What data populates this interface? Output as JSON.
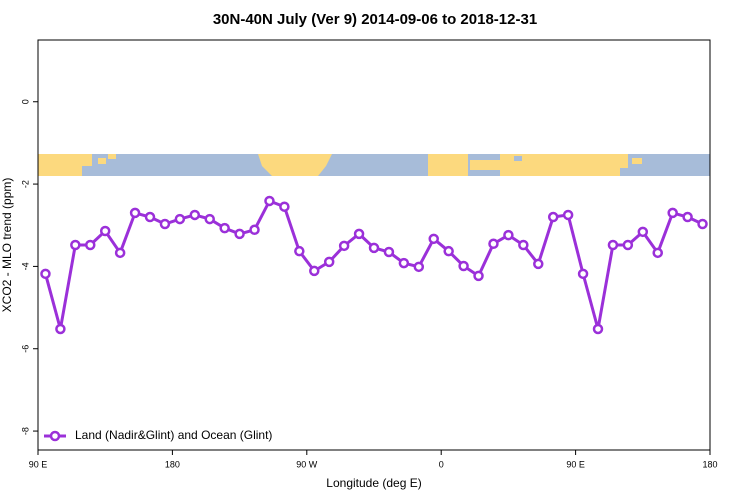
{
  "chart_data": {
    "type": "line",
    "title": "30N-40N July (Ver 9)   2014-09-06 to 2018-12-31",
    "x_label": "Longitude (deg E)",
    "y_label": "XCO2 - MLO trend (ppm)",
    "x": [
      95,
      105,
      115,
      125,
      135,
      145,
      155,
      165,
      175,
      185,
      195,
      205,
      215,
      225,
      235,
      245,
      255,
      265,
      275,
      285,
      295,
      305,
      315,
      325,
      335,
      345,
      355,
      365,
      375,
      385,
      395,
      405,
      415,
      425,
      435,
      445,
      455,
      465,
      475,
      485,
      495,
      505,
      515,
      525,
      535
    ],
    "series": [
      {
        "name": "Land (Nadir&Glint) and Ocean (Glint)",
        "color": "#9b30d9",
        "values": [
          -4.18,
          -5.52,
          -3.48,
          -3.48,
          -3.14,
          -3.67,
          -2.7,
          -2.8,
          -2.97,
          -2.85,
          -2.75,
          -2.85,
          -3.07,
          -3.21,
          -3.11,
          -2.41,
          -2.55,
          -3.63,
          -4.11,
          -3.89,
          -3.5,
          -3.21,
          -3.55,
          -3.65,
          -3.92,
          -4.01,
          -3.33,
          -3.63,
          -3.99,
          -4.23,
          -3.45,
          -3.24,
          -3.48,
          -3.94,
          -2.8,
          -2.75,
          -4.18,
          -5.52,
          -3.48,
          -3.48,
          -3.16,
          -3.67,
          -2.7,
          -2.8,
          -2.97
        ]
      }
    ],
    "xlim": [
      90,
      540
    ],
    "xticks": [
      {
        "value": 90,
        "label": "90 E"
      },
      180,
      {
        "value": 270,
        "label": "90 W"
      },
      {
        "value": 360,
        "label": "0"
      },
      {
        "value": 450,
        "label": "90 E"
      },
      {
        "value": 540,
        "label": "180"
      }
    ],
    "ylim": [
      -8.46,
      1.5
    ],
    "yticks": [
      0,
      -2,
      -4,
      -6,
      -8
    ],
    "legend": "bottom-left"
  }
}
